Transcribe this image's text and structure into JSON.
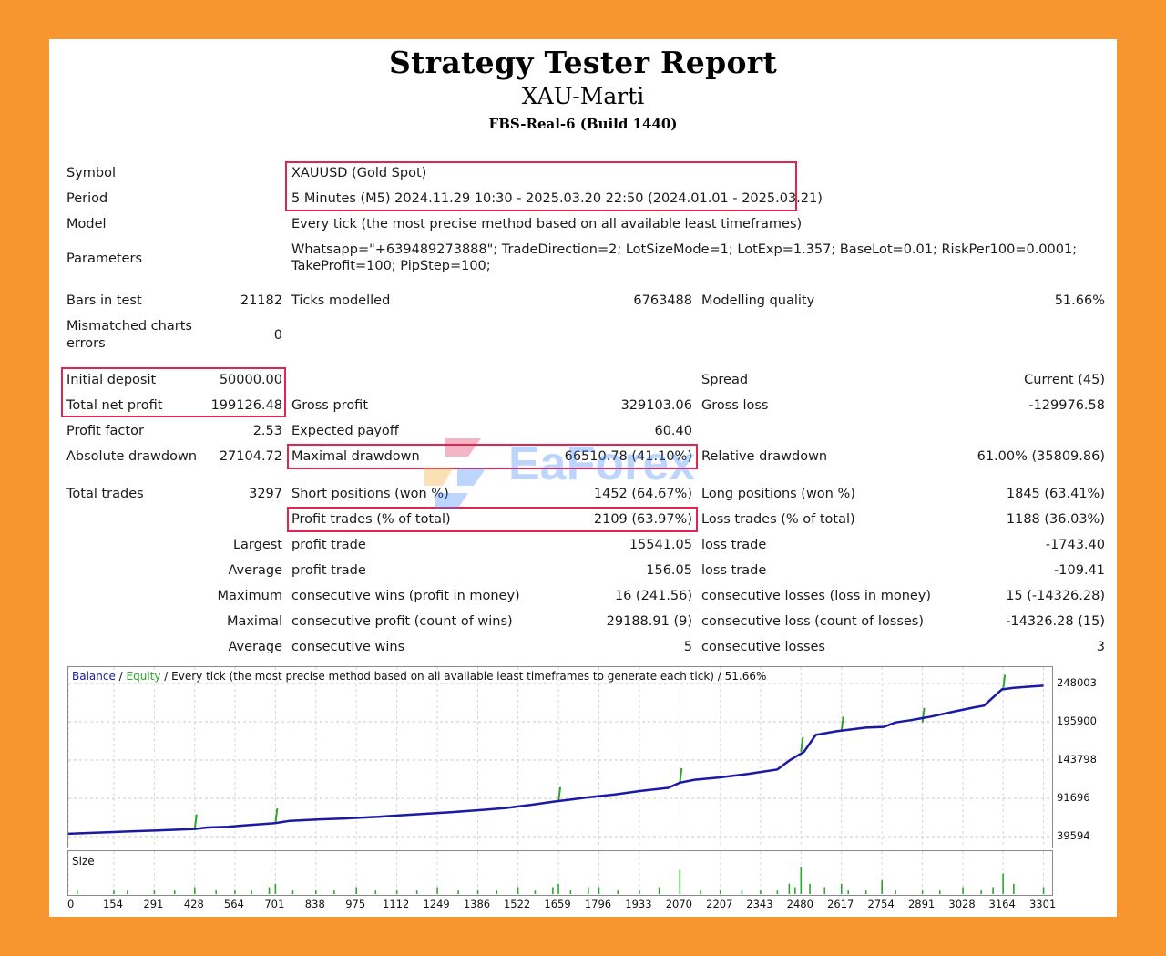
{
  "header": {
    "title": "Strategy Tester Report",
    "expert": "XAU-Marti",
    "server": "FBS-Real-6 (Build 1440)"
  },
  "settings": {
    "symbol_label": "Symbol",
    "symbol_value": "XAUUSD (Gold Spot)",
    "period_label": "Period",
    "period_value": "5 Minutes (M5) 2024.11.29 10:30 - 2025.03.20 22:50 (2024.01.01 - 2025.03.21)",
    "model_label": "Model",
    "model_value": "Every tick (the most precise method based on all available least timeframes)",
    "parameters_label": "Parameters",
    "parameters_line1": "Whatsapp=\"+639489273888\"; TradeDirection=2; LotSizeMode=1; LotExp=1.357; BaseLot=0.01; RiskPer100=0.0001;",
    "parameters_line2": "TakeProfit=100; PipStep=100;"
  },
  "quality": {
    "bars_label": "Bars in test",
    "bars_value": "21182",
    "ticks_label": "Ticks modelled",
    "ticks_value": "6763488",
    "modelling_label": "Modelling quality",
    "modelling_value": "51.66%",
    "mismatched_label_1": "Mismatched charts",
    "mismatched_label_2": "errors",
    "mismatched_value": "0"
  },
  "results": {
    "initial_deposit_label": "Initial deposit",
    "initial_deposit_value": "50000.00",
    "spread_label": "Spread",
    "spread_value": "Current (45)",
    "total_net_profit_label": "Total net profit",
    "total_net_profit_value": "199126.48",
    "gross_profit_label": "Gross profit",
    "gross_profit_value": "329103.06",
    "gross_loss_label": "Gross loss",
    "gross_loss_value": "-129976.58",
    "profit_factor_label": "Profit factor",
    "profit_factor_value": "2.53",
    "expected_payoff_label": "Expected payoff",
    "expected_payoff_value": "60.40",
    "absolute_drawdown_label": "Absolute drawdown",
    "absolute_drawdown_value": "27104.72",
    "maximal_drawdown_label": "Maximal drawdown",
    "maximal_drawdown_value": "66510.78 (41.10%)",
    "relative_drawdown_label": "Relative drawdown",
    "relative_drawdown_value": "61.00% (35809.86)"
  },
  "trades": {
    "total_trades_label": "Total trades",
    "total_trades_value": "3297",
    "short_label": "Short positions (won %)",
    "short_value": "1452 (64.67%)",
    "long_label": "Long positions (won %)",
    "long_value": "1845 (63.41%)",
    "profit_trades_label": "Profit trades (% of total)",
    "profit_trades_value": "2109 (63.97%)",
    "loss_trades_label": "Loss trades (% of total)",
    "loss_trades_value": "1188 (36.03%)",
    "largest_label": "Largest",
    "largest_profit_label": "profit trade",
    "largest_profit_value": "15541.05",
    "largest_loss_label": "loss trade",
    "largest_loss_value": "-1743.40",
    "average_label": "Average",
    "average_profit_label": "profit trade",
    "average_profit_value": "156.05",
    "average_loss_label": "loss trade",
    "average_loss_value": "-109.41",
    "maximum_label": "Maximum",
    "max_wins_label": "consecutive wins (profit in money)",
    "max_wins_value": "16 (241.56)",
    "max_losses_label": "consecutive losses (loss in money)",
    "max_losses_value": "15 (-14326.28)",
    "maximal_label": "Maximal",
    "maximal_profit_label": "consecutive profit (count of wins)",
    "maximal_profit_value": "29188.91 (9)",
    "maximal_loss_label": "consecutive loss (count of losses)",
    "maximal_loss_value": "-14326.28 (15)",
    "average2_label": "Average",
    "avg_wins_label": "consecutive wins",
    "avg_wins_value": "5",
    "avg_losses_label": "consecutive losses",
    "avg_losses_value": "3"
  },
  "watermark": {
    "text": "EaForex"
  },
  "colors": {
    "balance": "#1a1aa6",
    "equity": "#2aa52a",
    "highlight_box": "#e0264f",
    "background": "#f7962f"
  },
  "chart_data": {
    "type": "line",
    "legend": {
      "balance": "Balance",
      "separator1": " / ",
      "equity": "Equity",
      "rest": " / Every tick (the most precise method based on all available least timeframes to generate each tick) / 51.66%"
    },
    "size_label": "Size",
    "y_ticks": [
      "248003",
      "195900",
      "143798",
      "91696",
      "39594"
    ],
    "x_ticks": [
      "0",
      "154",
      "291",
      "428",
      "564",
      "701",
      "838",
      "975",
      "1112",
      "1249",
      "1386",
      "1522",
      "1659",
      "1796",
      "1933",
      "2070",
      "2207",
      "2343",
      "2480",
      "2617",
      "2754",
      "2891",
      "3028",
      "3164",
      "3301"
    ],
    "ylim": [
      39594,
      248003
    ],
    "xlim": [
      0,
      3330
    ],
    "series": [
      {
        "name": "Balance",
        "x": [
          0,
          100,
          200,
          300,
          428,
          470,
          540,
          600,
          700,
          750,
          850,
          950,
          1050,
          1100,
          1200,
          1300,
          1400,
          1480,
          1570,
          1640,
          1700,
          1760,
          1850,
          1940,
          2030,
          2070,
          2120,
          2200,
          2300,
          2400,
          2440,
          2490,
          2530,
          2600,
          2700,
          2760,
          2800,
          2850,
          2920,
          3000,
          3060,
          3100,
          3130,
          3160,
          3200,
          3260,
          3301
        ],
        "y": [
          43500,
          45000,
          46500,
          48000,
          50000,
          52000,
          53000,
          55000,
          58000,
          61000,
          63000,
          64500,
          66500,
          68000,
          70500,
          73000,
          76000,
          78500,
          83000,
          87000,
          90000,
          93000,
          97000,
          102000,
          106000,
          113000,
          117000,
          120000,
          125000,
          131000,
          143000,
          155000,
          178000,
          183000,
          188000,
          189000,
          195000,
          198000,
          203000,
          210000,
          215000,
          218000,
          229000,
          240000,
          242000,
          244000,
          245000
        ]
      },
      {
        "name": "Equity",
        "x": [
          428,
          701,
          1659,
          2070,
          2480,
          2617,
          2891,
          3164
        ],
        "y": [
          50000,
          58000,
          87000,
          113000,
          155000,
          183000,
          195000,
          240000
        ]
      }
    ],
    "size_bars": {
      "x": [
        30,
        154,
        200,
        291,
        360,
        428,
        500,
        564,
        620,
        680,
        701,
        760,
        838,
        900,
        975,
        1040,
        1112,
        1180,
        1249,
        1320,
        1386,
        1450,
        1522,
        1580,
        1640,
        1659,
        1700,
        1760,
        1796,
        1860,
        1933,
        2000,
        2070,
        2140,
        2207,
        2280,
        2343,
        2400,
        2440,
        2460,
        2480,
        2510,
        2560,
        2617,
        2640,
        2700,
        2754,
        2800,
        2891,
        2950,
        3028,
        3090,
        3130,
        3164,
        3200,
        3301
      ],
      "values": [
        1,
        1,
        1,
        1,
        1,
        2,
        1,
        1,
        1,
        2,
        3,
        1,
        1,
        1,
        2,
        1,
        1,
        1,
        2,
        1,
        1,
        1,
        2,
        1,
        2,
        3,
        1,
        2,
        2,
        1,
        1,
        2,
        7,
        1,
        1,
        1,
        1,
        1,
        3,
        2,
        8,
        3,
        2,
        3,
        1,
        1,
        4,
        1,
        1,
        1,
        2,
        1,
        2,
        6,
        3,
        2
      ]
    }
  }
}
